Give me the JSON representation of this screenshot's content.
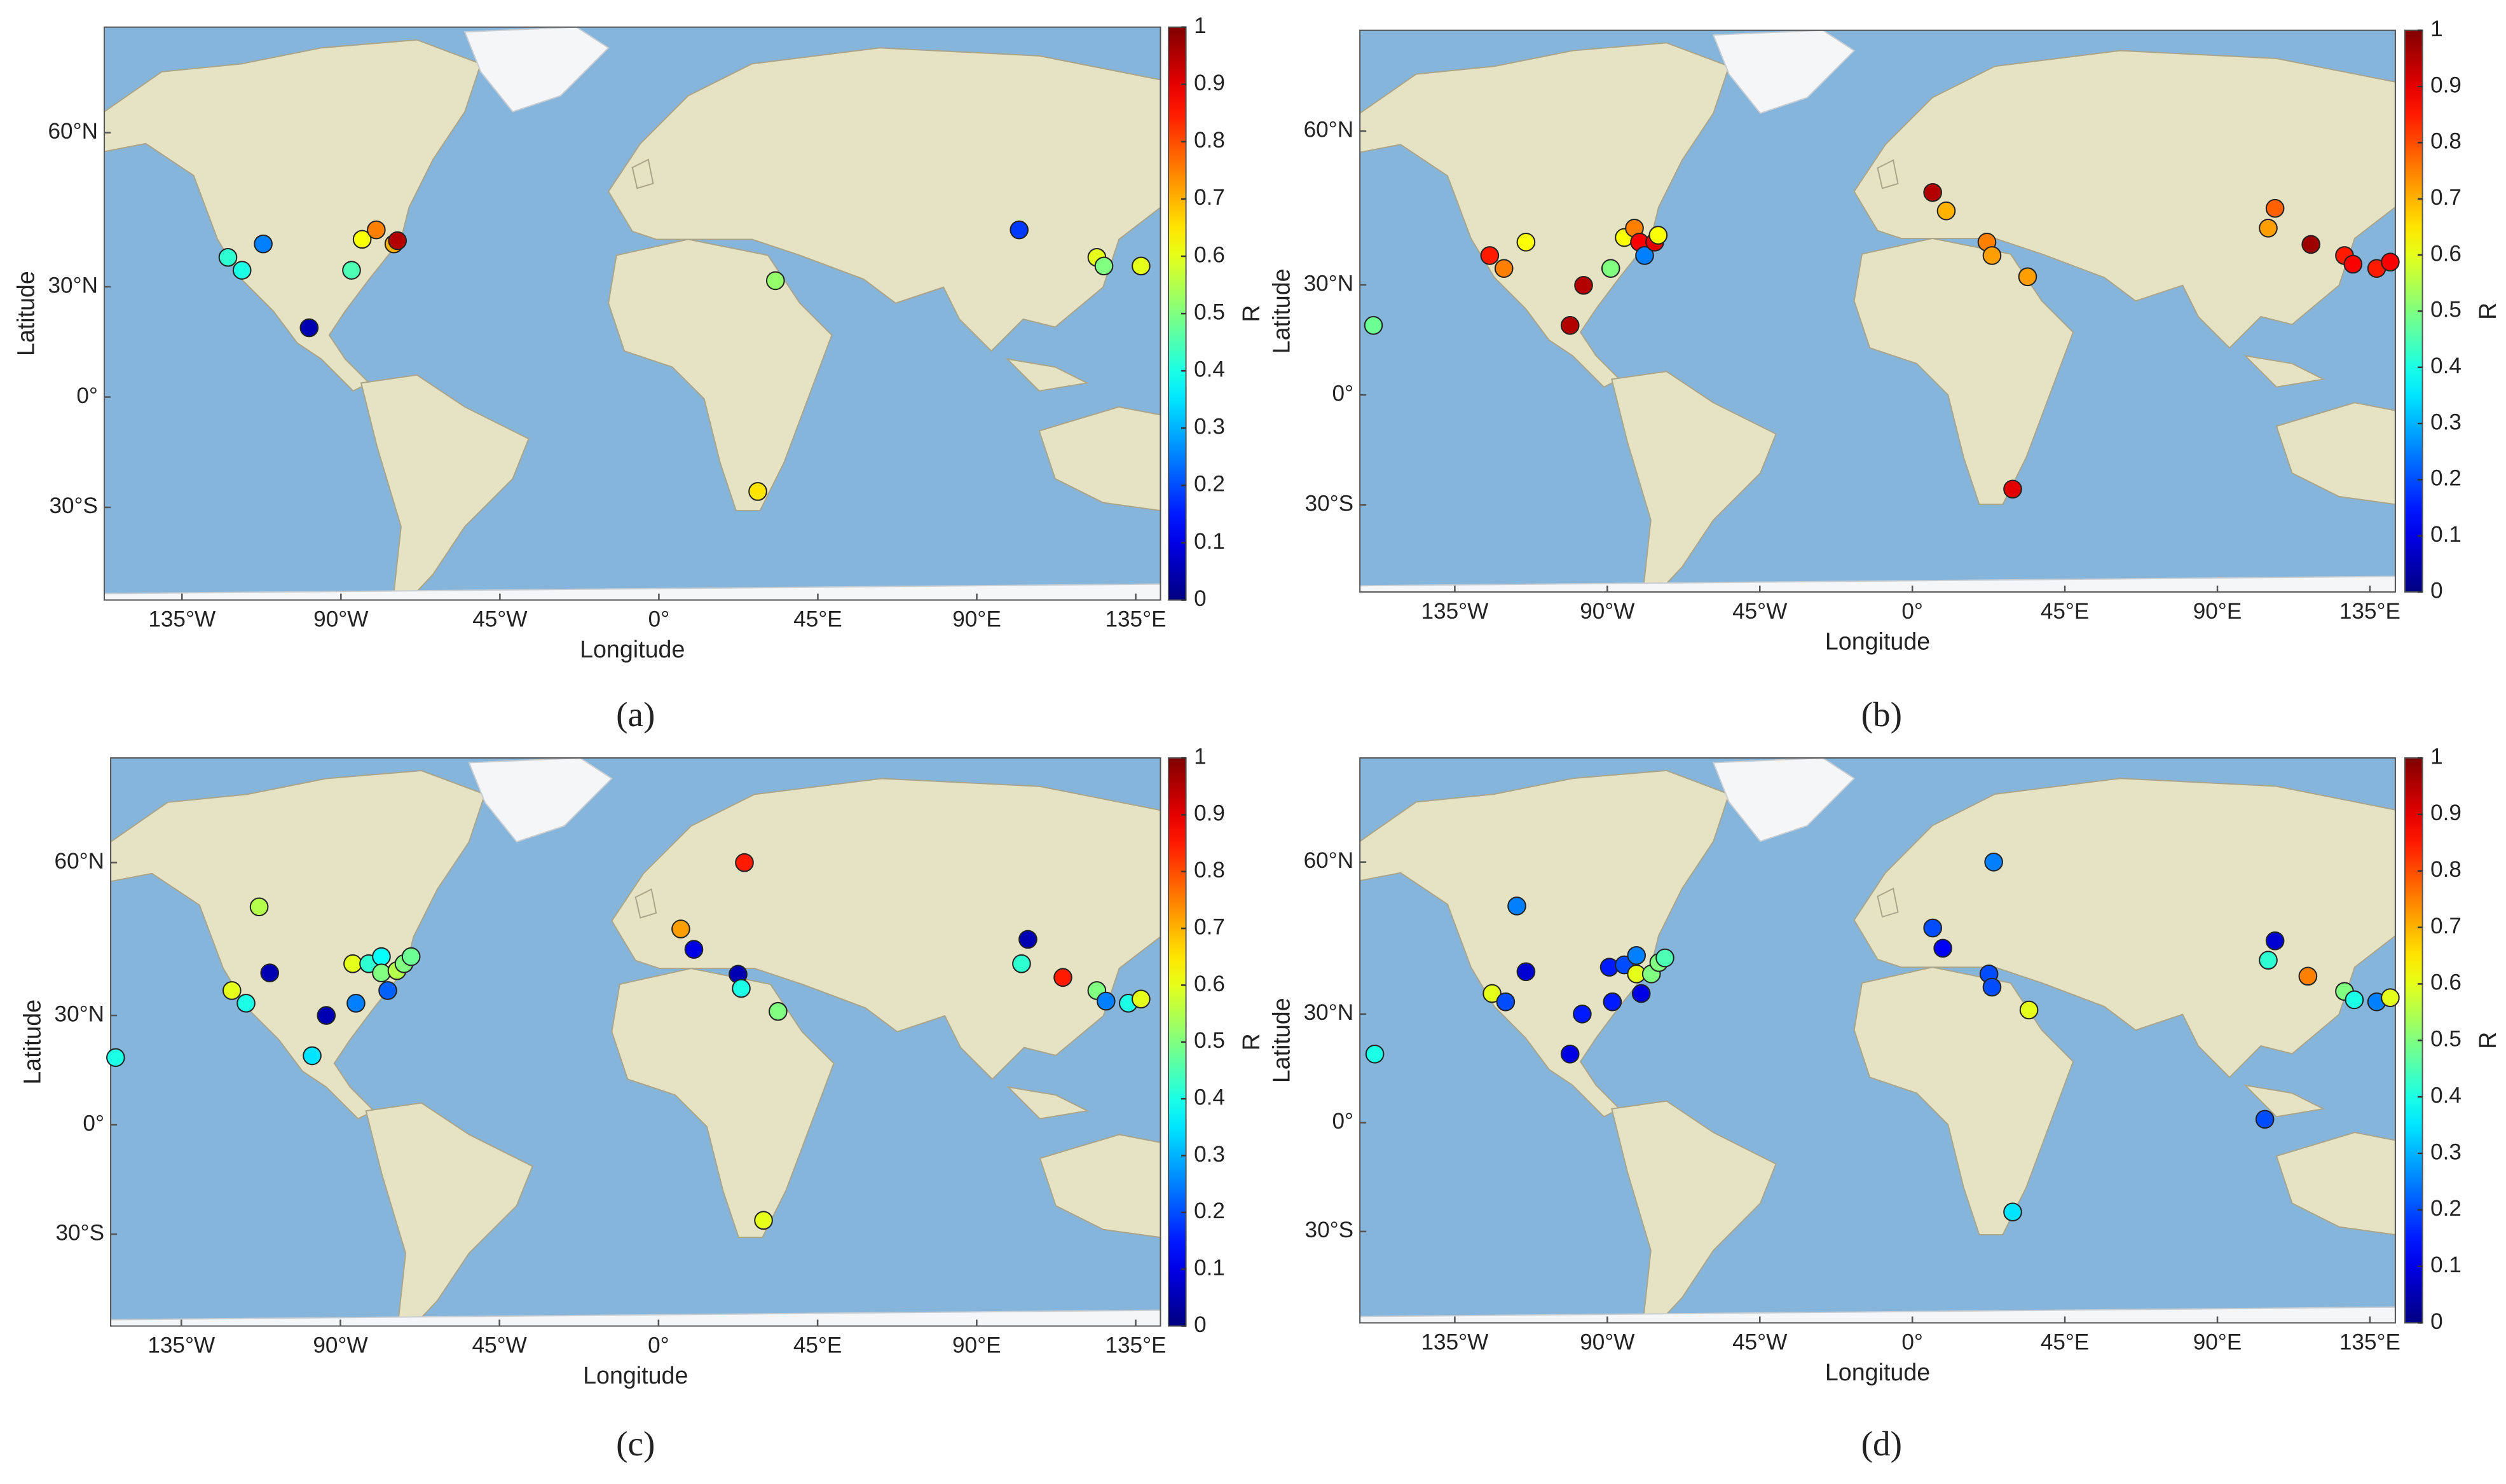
{
  "chart_data": [
    {
      "type": "scatter",
      "caption": "(a)",
      "xlabel": "Longitude",
      "ylabel": "Latitude",
      "colorbar_label": "R",
      "yscale": "mercator",
      "colormap": "jet",
      "clim": [
        0,
        1
      ],
      "cticks": [
        0,
        0.1,
        0.2,
        0.3,
        0.4,
        0.5,
        0.6,
        0.7,
        0.8,
        0.9,
        1
      ],
      "xlim": [
        -157,
        142
      ],
      "ylim": [
        -50,
        72
      ],
      "xticks": [
        {
          "value": -135,
          "label": "135°W"
        },
        {
          "value": -90,
          "label": "90°W"
        },
        {
          "value": -45,
          "label": "45°W"
        },
        {
          "value": 0,
          "label": "0°"
        },
        {
          "value": 45,
          "label": "45°E"
        },
        {
          "value": 90,
          "label": "90°E"
        },
        {
          "value": 135,
          "label": "135°E"
        }
      ],
      "yticks": [
        {
          "value": -30,
          "label": "30°S"
        },
        {
          "value": 0,
          "label": "0°"
        },
        {
          "value": 30,
          "label": "30°N"
        },
        {
          "value": 60,
          "label": "60°N"
        }
      ],
      "x": [
        -122,
        -118,
        -112,
        -99,
        -87,
        -84,
        -80,
        -75,
        -74,
        33,
        28,
        102,
        124,
        126,
        136.5
      ],
      "values": [
        37,
        34,
        40,
        19.4,
        34,
        41,
        43,
        40,
        40.7,
        31.5,
        -26,
        43,
        37,
        35,
        35
      ],
      "color_values": [
        0.42,
        0.4,
        0.25,
        0.05,
        0.45,
        0.62,
        0.75,
        0.7,
        0.95,
        0.52,
        0.65,
        0.18,
        0.6,
        0.5,
        0.6
      ]
    },
    {
      "type": "scatter",
      "caption": "(b)",
      "xlabel": "Longitude",
      "ylabel": "Latitude",
      "colorbar_label": "R",
      "yscale": "mercator",
      "colormap": "jet",
      "clim": [
        0,
        1
      ],
      "cticks": [
        0,
        0.1,
        0.2,
        0.3,
        0.4,
        0.5,
        0.6,
        0.7,
        0.8,
        0.9,
        1
      ],
      "xlim": [
        -163,
        142.5
      ],
      "ylim": [
        -49,
        71.6
      ],
      "xticks": [
        {
          "value": -135,
          "label": "135°W"
        },
        {
          "value": -90,
          "label": "90°W"
        },
        {
          "value": -45,
          "label": "45°W"
        },
        {
          "value": 0,
          "label": "0°"
        },
        {
          "value": 45,
          "label": "45°E"
        },
        {
          "value": 90,
          "label": "90°E"
        },
        {
          "value": 135,
          "label": "135°E"
        }
      ],
      "yticks": [
        {
          "value": -30,
          "label": "30°S"
        },
        {
          "value": 0,
          "label": "0°"
        },
        {
          "value": 30,
          "label": "30°N"
        },
        {
          "value": 60,
          "label": "60°N"
        }
      ],
      "x": [
        -159,
        -124.7,
        -120.5,
        -114,
        -97,
        -101,
        -89,
        -85,
        -82,
        -80.5,
        -79,
        -76,
        -75,
        6,
        10,
        22,
        23.5,
        34,
        29.6,
        107,
        105,
        117.6,
        127.5,
        130,
        137,
        141
      ],
      "values": [
        19.5,
        37,
        34,
        40,
        29.9,
        19.5,
        34,
        41,
        43,
        40,
        37,
        40,
        41.5,
        50,
        46.5,
        40,
        37,
        32,
        -26,
        47,
        43,
        39.5,
        37,
        35,
        34,
        35.5
      ],
      "color_values": [
        0.48,
        0.85,
        0.75,
        0.62,
        0.95,
        0.95,
        0.5,
        0.62,
        0.75,
        0.88,
        0.25,
        0.9,
        0.62,
        0.95,
        0.7,
        0.75,
        0.72,
        0.72,
        0.9,
        0.78,
        0.72,
        0.97,
        0.85,
        0.88,
        0.85,
        0.88
      ]
    },
    {
      "type": "scatter",
      "caption": "(c)",
      "xlabel": "Longitude",
      "ylabel": "Latitude",
      "colorbar_label": "R",
      "yscale": "mercator",
      "colormap": "jet",
      "clim": [
        0,
        1
      ],
      "cticks": [
        0,
        0.1,
        0.2,
        0.3,
        0.4,
        0.5,
        0.6,
        0.7,
        0.8,
        0.9,
        1
      ],
      "xlim": [
        -155,
        142
      ],
      "ylim": [
        -50,
        72
      ],
      "xticks": [
        {
          "value": -135,
          "label": "135°W"
        },
        {
          "value": -90,
          "label": "90°W"
        },
        {
          "value": -45,
          "label": "45°W"
        },
        {
          "value": 0,
          "label": "0°"
        },
        {
          "value": 45,
          "label": "45°E"
        },
        {
          "value": 90,
          "label": "90°E"
        },
        {
          "value": 135,
          "label": "135°E"
        }
      ],
      "yticks": [
        {
          "value": -30,
          "label": "30°S"
        },
        {
          "value": 0,
          "label": "0°"
        },
        {
          "value": 30,
          "label": "30°N"
        },
        {
          "value": 60,
          "label": "60°N"
        }
      ],
      "x": [
        -153.6,
        -120.7,
        -116.7,
        -113,
        -110,
        -94,
        -98,
        -86.5,
        -85.6,
        -82,
        -78.4,
        -78.4,
        -76.6,
        -74,
        -72,
        -70,
        6.3,
        10,
        22.5,
        23.4,
        24.3,
        33.8,
        29.7,
        104.5,
        102.7,
        114.4,
        124,
        126.6,
        132.9,
        136.5
      ],
      "values": [
        19,
        36,
        33,
        53,
        40,
        30,
        19.5,
        42,
        33,
        42,
        43.5,
        40,
        36,
        40.5,
        42,
        43.5,
        49,
        45,
        39.7,
        36.5,
        60,
        31,
        -26.5,
        47,
        42,
        39,
        36,
        33.5,
        33,
        34
      ],
      "color_values": [
        0.4,
        0.6,
        0.4,
        0.55,
        0.05,
        0.05,
        0.35,
        0.6,
        0.25,
        0.42,
        0.38,
        0.5,
        0.22,
        0.55,
        0.5,
        0.48,
        0.72,
        0.1,
        0.05,
        0.4,
        0.85,
        0.5,
        0.6,
        0.05,
        0.42,
        0.85,
        0.5,
        0.25,
        0.4,
        0.6
      ]
    },
    {
      "type": "scatter",
      "caption": "(d)",
      "xlabel": "Longitude",
      "ylabel": "Latitude",
      "colorbar_label": "R",
      "yscale": "mercator",
      "colormap": "jet",
      "clim": [
        0,
        1
      ],
      "cticks": [
        0,
        0.1,
        0.2,
        0.3,
        0.4,
        0.5,
        0.6,
        0.7,
        0.8,
        0.9,
        1
      ],
      "xlim": [
        -163,
        142.5
      ],
      "ylim": [
        -50,
        72
      ],
      "xticks": [
        {
          "value": -135,
          "label": "135°W"
        },
        {
          "value": -90,
          "label": "90°W"
        },
        {
          "value": -45,
          "label": "45°W"
        },
        {
          "value": 0,
          "label": "0°"
        },
        {
          "value": 45,
          "label": "45°E"
        },
        {
          "value": 90,
          "label": "90°E"
        },
        {
          "value": 135,
          "label": "135°E"
        }
      ],
      "yticks": [
        {
          "value": -30,
          "label": "30°S"
        },
        {
          "value": 0,
          "label": "0°"
        },
        {
          "value": 30,
          "label": "30°N"
        },
        {
          "value": 60,
          "label": "60°N"
        }
      ],
      "x": [
        -158.6,
        -124,
        -120,
        -116.7,
        -114,
        -97.4,
        -101,
        -89.4,
        -88.5,
        -85,
        -81.4,
        -81.4,
        -80,
        -77,
        -74.8,
        -73,
        6,
        9,
        22.6,
        23.5,
        24,
        34.4,
        29.6,
        104,
        107,
        105,
        116.7,
        127.5,
        130.4,
        137,
        141
      ],
      "values": [
        19.5,
        35,
        33,
        53,
        40,
        30,
        19.5,
        41,
        33,
        41.5,
        43.5,
        39.5,
        35,
        39.5,
        42,
        43,
        49,
        45,
        39.5,
        36.5,
        60,
        31,
        -25,
        1,
        46.5,
        42.5,
        39,
        35.5,
        33.5,
        33,
        34
      ],
      "color_values": [
        0.4,
        0.6,
        0.2,
        0.25,
        0.08,
        0.15,
        0.1,
        0.15,
        0.15,
        0.2,
        0.25,
        0.6,
        0.1,
        0.5,
        0.5,
        0.45,
        0.2,
        0.12,
        0.2,
        0.2,
        0.25,
        0.6,
        0.35,
        0.2,
        0.08,
        0.42,
        0.75,
        0.5,
        0.4,
        0.25,
        0.6
      ]
    }
  ]
}
